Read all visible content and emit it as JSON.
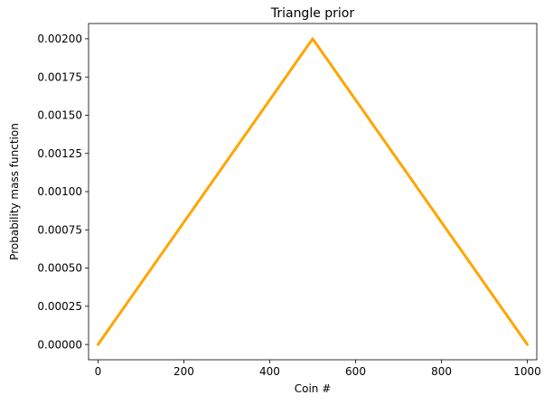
{
  "chart_data": {
    "type": "line",
    "title": "Triangle prior",
    "xlabel": "Coin #",
    "ylabel": "Probability mass function",
    "xlim": [
      -22,
      1022
    ],
    "ylim": [
      -0.0001,
      0.0021
    ],
    "xticks": [
      0,
      200,
      400,
      600,
      800,
      1000
    ],
    "xtick_labels": [
      "0",
      "200",
      "400",
      "600",
      "800",
      "1000"
    ],
    "yticks": [
      0,
      0.00025,
      0.0005,
      0.00075,
      0.001,
      0.00125,
      0.0015,
      0.00175,
      0.002
    ],
    "ytick_labels": [
      "0.00000",
      "0.00025",
      "0.00050",
      "0.00075",
      "0.00100",
      "0.00125",
      "0.00150",
      "0.00175",
      "0.00200"
    ],
    "grid": false,
    "series": [
      {
        "color": "#ffa500",
        "x": [
          0,
          500,
          1000
        ],
        "y": [
          0,
          0.002,
          0
        ]
      }
    ]
  }
}
